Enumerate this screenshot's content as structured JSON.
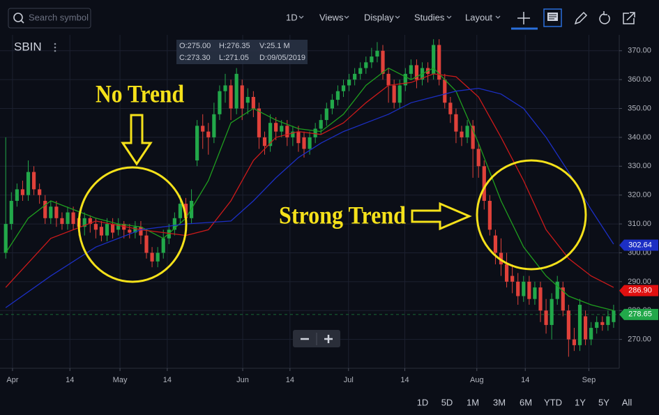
{
  "toolbar": {
    "search_placeholder": "Search symbol",
    "interval": "1D",
    "menus": [
      "Views",
      "Display",
      "Studies",
      "Layout"
    ]
  },
  "symbol": "SBIN",
  "ohlc_box": {
    "open": "O:275.00",
    "high": "H:276.35",
    "volume": "V:25.1 M",
    "close": "C:273.30",
    "low": "L:271.05",
    "date": "D:09/05/2019"
  },
  "range_buttons": [
    "1D",
    "5D",
    "1M",
    "3M",
    "6M",
    "YTD",
    "1Y",
    "5Y",
    "All"
  ],
  "chart_data": {
    "type": "candlestick",
    "annotations": [
      "No Trend",
      "Strong Trend"
    ],
    "up_color": "#22a84a",
    "down_color": "#e0413a",
    "open": [
      300,
      310,
      318,
      322,
      320,
      328,
      322,
      318,
      312,
      316,
      312,
      310,
      314,
      312,
      309,
      312,
      310,
      309,
      306,
      310,
      308,
      310,
      308,
      307,
      309,
      306,
      300,
      297,
      300,
      305,
      308,
      312,
      317,
      312,
      332,
      344,
      342,
      340,
      348,
      356,
      358,
      350,
      358,
      352,
      354,
      350,
      340,
      337,
      345,
      342,
      344,
      340,
      342,
      340,
      336,
      340,
      343,
      346,
      350,
      353,
      356,
      358,
      360,
      362,
      364,
      366,
      368,
      370,
      362,
      358,
      352,
      358,
      362,
      365,
      360,
      364,
      362,
      372,
      360,
      352,
      348,
      342,
      340,
      344,
      336,
      330,
      318,
      306,
      300,
      296,
      292,
      290,
      285,
      290,
      284,
      288,
      280,
      275,
      284,
      288,
      280,
      270,
      268,
      278,
      270,
      274,
      276,
      275,
      276
    ],
    "high": [
      340,
      321,
      324,
      325,
      332,
      330,
      324,
      320,
      318,
      318,
      314,
      316,
      316,
      314,
      314,
      313,
      312,
      311,
      312,
      312,
      312,
      311,
      310,
      311,
      311,
      308,
      302,
      302,
      308,
      310,
      314,
      320,
      319,
      322,
      346,
      348,
      345,
      352,
      358,
      362,
      360,
      364,
      360,
      357,
      356,
      352,
      342,
      348,
      347,
      346,
      346,
      344,
      344,
      342,
      342,
      345,
      348,
      352,
      355,
      358,
      360,
      362,
      364,
      366,
      368,
      371,
      373,
      372,
      364,
      360,
      360,
      364,
      367,
      367,
      366,
      366,
      374,
      374,
      362,
      354,
      350,
      344,
      346,
      346,
      338,
      332,
      320,
      308,
      305,
      300,
      296,
      293,
      292,
      292,
      290,
      290,
      284,
      286,
      292,
      290,
      282,
      274,
      284,
      280,
      276,
      278,
      278,
      280,
      282
    ],
    "low": [
      298,
      308,
      316,
      318,
      318,
      320,
      317,
      310,
      310,
      309,
      308,
      308,
      308,
      306,
      306,
      307,
      305,
      304,
      304,
      305,
      306,
      305,
      305,
      305,
      303,
      298,
      295,
      295,
      298,
      303,
      306,
      310,
      310,
      310,
      330,
      336,
      334,
      338,
      346,
      352,
      346,
      348,
      346,
      348,
      347,
      336,
      334,
      335,
      339,
      340,
      337,
      337,
      335,
      333,
      334,
      338,
      341,
      344,
      348,
      351,
      354,
      356,
      358,
      360,
      362,
      364,
      366,
      360,
      352,
      350,
      350,
      356,
      360,
      357,
      358,
      359,
      360,
      358,
      350,
      345,
      338,
      337,
      338,
      326,
      326,
      315,
      306,
      296,
      292,
      288,
      286,
      282,
      283,
      282,
      282,
      276,
      272,
      270,
      282,
      278,
      264,
      266,
      266,
      268,
      268,
      272,
      273,
      273,
      274
    ],
    "close": [
      310,
      318,
      322,
      320,
      328,
      322,
      320,
      312,
      316,
      312,
      310,
      314,
      310,
      309,
      312,
      310,
      308,
      306,
      310,
      307,
      310,
      308,
      307,
      309,
      306,
      300,
      297,
      300,
      305,
      308,
      312,
      317,
      312,
      318,
      344,
      342,
      340,
      348,
      356,
      358,
      350,
      362,
      350,
      354,
      350,
      340,
      337,
      345,
      342,
      344,
      340,
      342,
      338,
      336,
      340,
      343,
      346,
      350,
      353,
      356,
      358,
      360,
      362,
      364,
      366,
      368,
      370,
      362,
      358,
      352,
      358,
      362,
      365,
      360,
      364,
      362,
      372,
      360,
      352,
      348,
      342,
      340,
      344,
      336,
      330,
      318,
      308,
      300,
      296,
      290,
      290,
      285,
      290,
      284,
      288,
      280,
      275,
      284,
      290,
      280,
      270,
      268,
      282,
      270,
      274,
      276,
      275,
      278,
      280
    ],
    "series": [
      {
        "color": "#1f9e1f",
        "x": [
          0,
          4,
          8,
          12,
          16,
          20,
          24,
          28,
          32,
          36,
          40,
          44,
          48,
          52,
          56,
          60,
          64,
          68,
          72,
          76,
          80,
          84,
          88,
          92,
          96,
          100,
          104,
          108
        ],
        "values": [
          300,
          312,
          318,
          315,
          312,
          310,
          309,
          305,
          312,
          325,
          345,
          350,
          346,
          343,
          342,
          348,
          358,
          364,
          360,
          364,
          356,
          338,
          318,
          302,
          292,
          285,
          282,
          280
        ]
      },
      {
        "color": "#cc1a1a",
        "x": [
          0,
          8,
          16,
          24,
          32,
          36,
          40,
          44,
          48,
          52,
          56,
          60,
          64,
          68,
          72,
          76,
          80,
          84,
          88,
          92,
          96,
          100,
          104,
          108
        ],
        "values": [
          288,
          305,
          311,
          308,
          306,
          308,
          318,
          332,
          340,
          342,
          341,
          345,
          352,
          358,
          359,
          362,
          361,
          354,
          340,
          325,
          308,
          298,
          292,
          288
        ]
      },
      {
        "color": "#1c2fc4",
        "x": [
          0,
          8,
          16,
          24,
          32,
          40,
          44,
          48,
          52,
          56,
          60,
          64,
          68,
          72,
          76,
          80,
          84,
          88,
          92,
          96,
          100,
          104,
          108
        ],
        "values": [
          281,
          292,
          302,
          308,
          310,
          311,
          318,
          326,
          333,
          338,
          342,
          345,
          348,
          352,
          354,
          356,
          357,
          355,
          350,
          340,
          328,
          315,
          303
        ]
      }
    ],
    "xlim": [
      -0.4,
      109
    ],
    "xticks": [
      {
        "value": 1.2,
        "label": "Apr"
      },
      {
        "value": 11.4,
        "label": "14"
      },
      {
        "value": 20.3,
        "label": "May"
      },
      {
        "value": 28.7,
        "label": "14"
      },
      {
        "value": 42.1,
        "label": "Jun"
      },
      {
        "value": 50.5,
        "label": "14"
      },
      {
        "value": 60.9,
        "label": "Jul"
      },
      {
        "value": 70.9,
        "label": "14"
      },
      {
        "value": 83.7,
        "label": "Aug"
      },
      {
        "value": 92.3,
        "label": "14"
      },
      {
        "value": 103.6,
        "label": "Sep"
      }
    ],
    "ylim": [
      260,
      375.5
    ],
    "yticks": [
      {
        "value": 270,
        "label": "270.00"
      },
      {
        "value": 280,
        "label": "280.00"
      },
      {
        "value": 290,
        "label": "290.00"
      },
      {
        "value": 300,
        "label": "300.00"
      },
      {
        "value": 310,
        "label": "310.00"
      },
      {
        "value": 320,
        "label": "320.00"
      },
      {
        "value": 330,
        "label": "330.00"
      },
      {
        "value": 340,
        "label": "340.00"
      },
      {
        "value": 350,
        "label": "350.00"
      },
      {
        "value": 360,
        "label": "360.00"
      },
      {
        "value": 370,
        "label": "370.00"
      }
    ],
    "grid": true,
    "price_labels": [
      {
        "value": 302.64,
        "label": "302.64",
        "color": "#1c2fc4",
        "dashed": false
      },
      {
        "value": 286.9,
        "label": "286.90",
        "color": "#e01010",
        "dashed": false
      },
      {
        "value": 278.65,
        "label": "278.65",
        "color": "#22a84a",
        "dashed": true
      }
    ]
  }
}
